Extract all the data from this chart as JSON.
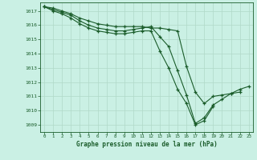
{
  "title": "Graphe pression niveau de la mer (hPa)",
  "bg_color": "#caf0e4",
  "grid_color": "#b0d8c8",
  "line_color": "#1a5c2a",
  "xlim": [
    -0.5,
    23.5
  ],
  "ylim": [
    1008.5,
    1017.6
  ],
  "yticks": [
    1009,
    1010,
    1011,
    1012,
    1013,
    1014,
    1015,
    1016,
    1017
  ],
  "xticks": [
    0,
    1,
    2,
    3,
    4,
    5,
    6,
    7,
    8,
    9,
    10,
    11,
    12,
    13,
    14,
    15,
    16,
    17,
    18,
    19,
    20,
    21,
    22,
    23
  ],
  "series1_x": [
    0,
    1,
    2,
    3,
    4,
    5,
    6,
    7,
    8,
    9,
    10,
    11,
    12,
    13,
    14,
    15,
    16,
    17,
    18,
    19,
    20,
    21,
    22,
    23
  ],
  "series1_y": [
    1017.3,
    1017.2,
    1017.0,
    1016.8,
    1016.5,
    1016.3,
    1016.1,
    1016.0,
    1015.9,
    1015.9,
    1015.9,
    1015.9,
    1015.8,
    1015.8,
    1015.7,
    1015.6,
    1013.1,
    1011.3,
    1010.5,
    1011.0,
    1011.1,
    1011.2,
    1011.5,
    1011.7
  ],
  "series2_x": [
    0,
    1,
    2,
    3,
    4,
    5,
    6,
    7,
    8,
    9,
    10,
    11,
    12,
    13,
    14,
    15,
    16,
    17,
    18,
    19,
    20,
    21,
    22
  ],
  "series2_y": [
    1017.3,
    1017.1,
    1016.9,
    1016.7,
    1016.3,
    1016.0,
    1015.8,
    1015.7,
    1015.6,
    1015.6,
    1015.7,
    1015.8,
    1015.9,
    1015.2,
    1014.5,
    1012.8,
    1011.1,
    1009.1,
    1009.5,
    1010.4,
    1010.8,
    1011.2,
    1011.3
  ],
  "series3_x": [
    0,
    1,
    2,
    3,
    4,
    5,
    6,
    7,
    8,
    9,
    10,
    11,
    12,
    13,
    14,
    15,
    16,
    17,
    18,
    19
  ],
  "series3_y": [
    1017.3,
    1017.0,
    1016.8,
    1016.5,
    1016.1,
    1015.8,
    1015.6,
    1015.5,
    1015.4,
    1015.4,
    1015.5,
    1015.6,
    1015.6,
    1014.2,
    1013.0,
    1011.5,
    1010.5,
    1009.0,
    1009.3,
    1010.3
  ]
}
